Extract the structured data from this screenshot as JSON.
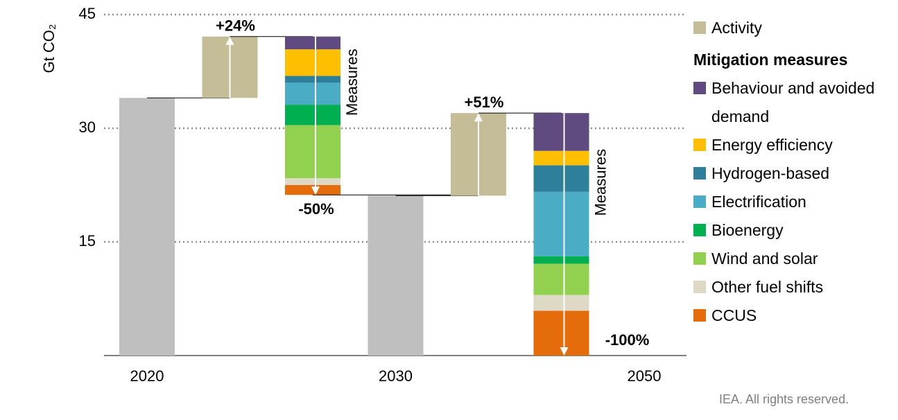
{
  "chart_data": {
    "type": "waterfall",
    "y_label": "Gt CO₂",
    "ylim": [
      0,
      45
    ],
    "yticks": [
      15,
      30,
      45
    ],
    "grid": true,
    "total_color": "#bfbfbf",
    "totals": {
      "categories": [
        "2020",
        "2030",
        "2050"
      ],
      "values": [
        34,
        21.1,
        0
      ]
    },
    "activity": {
      "name": "Activity",
      "color": "#c4bd97",
      "values": [
        8.1,
        10.9
      ],
      "value_labels": [
        "+24%",
        "+51%"
      ]
    },
    "measures_label": "Measures",
    "measures_value_labels": [
      "-50%",
      "-100%"
    ],
    "legend_heading": "Mitigation measures",
    "series": [
      {
        "name": "Behaviour and avoided demand",
        "color": "#5f4b7f",
        "values": [
          1.7,
          5.0
        ]
      },
      {
        "name": "Energy efficiency",
        "color": "#fdbf00",
        "values": [
          3.5,
          1.9
        ]
      },
      {
        "name": "Hydrogen-based",
        "color": "#2e7f99",
        "values": [
          0.9,
          3.5
        ]
      },
      {
        "name": "Electrification",
        "color": "#4bacc6",
        "values": [
          2.9,
          8.5
        ]
      },
      {
        "name": "Bioenergy",
        "color": "#00b050",
        "values": [
          2.7,
          1.0
        ]
      },
      {
        "name": "Wind and solar",
        "color": "#92d050",
        "values": [
          7.0,
          4.1
        ]
      },
      {
        "name": "Other fuel shifts",
        "color": "#ddd9c4",
        "values": [
          0.9,
          2.1
        ]
      },
      {
        "name": "CCUS",
        "color": "#e46c0a",
        "values": [
          1.3,
          5.9
        ]
      }
    ],
    "source": "IEA. All rights reserved."
  }
}
